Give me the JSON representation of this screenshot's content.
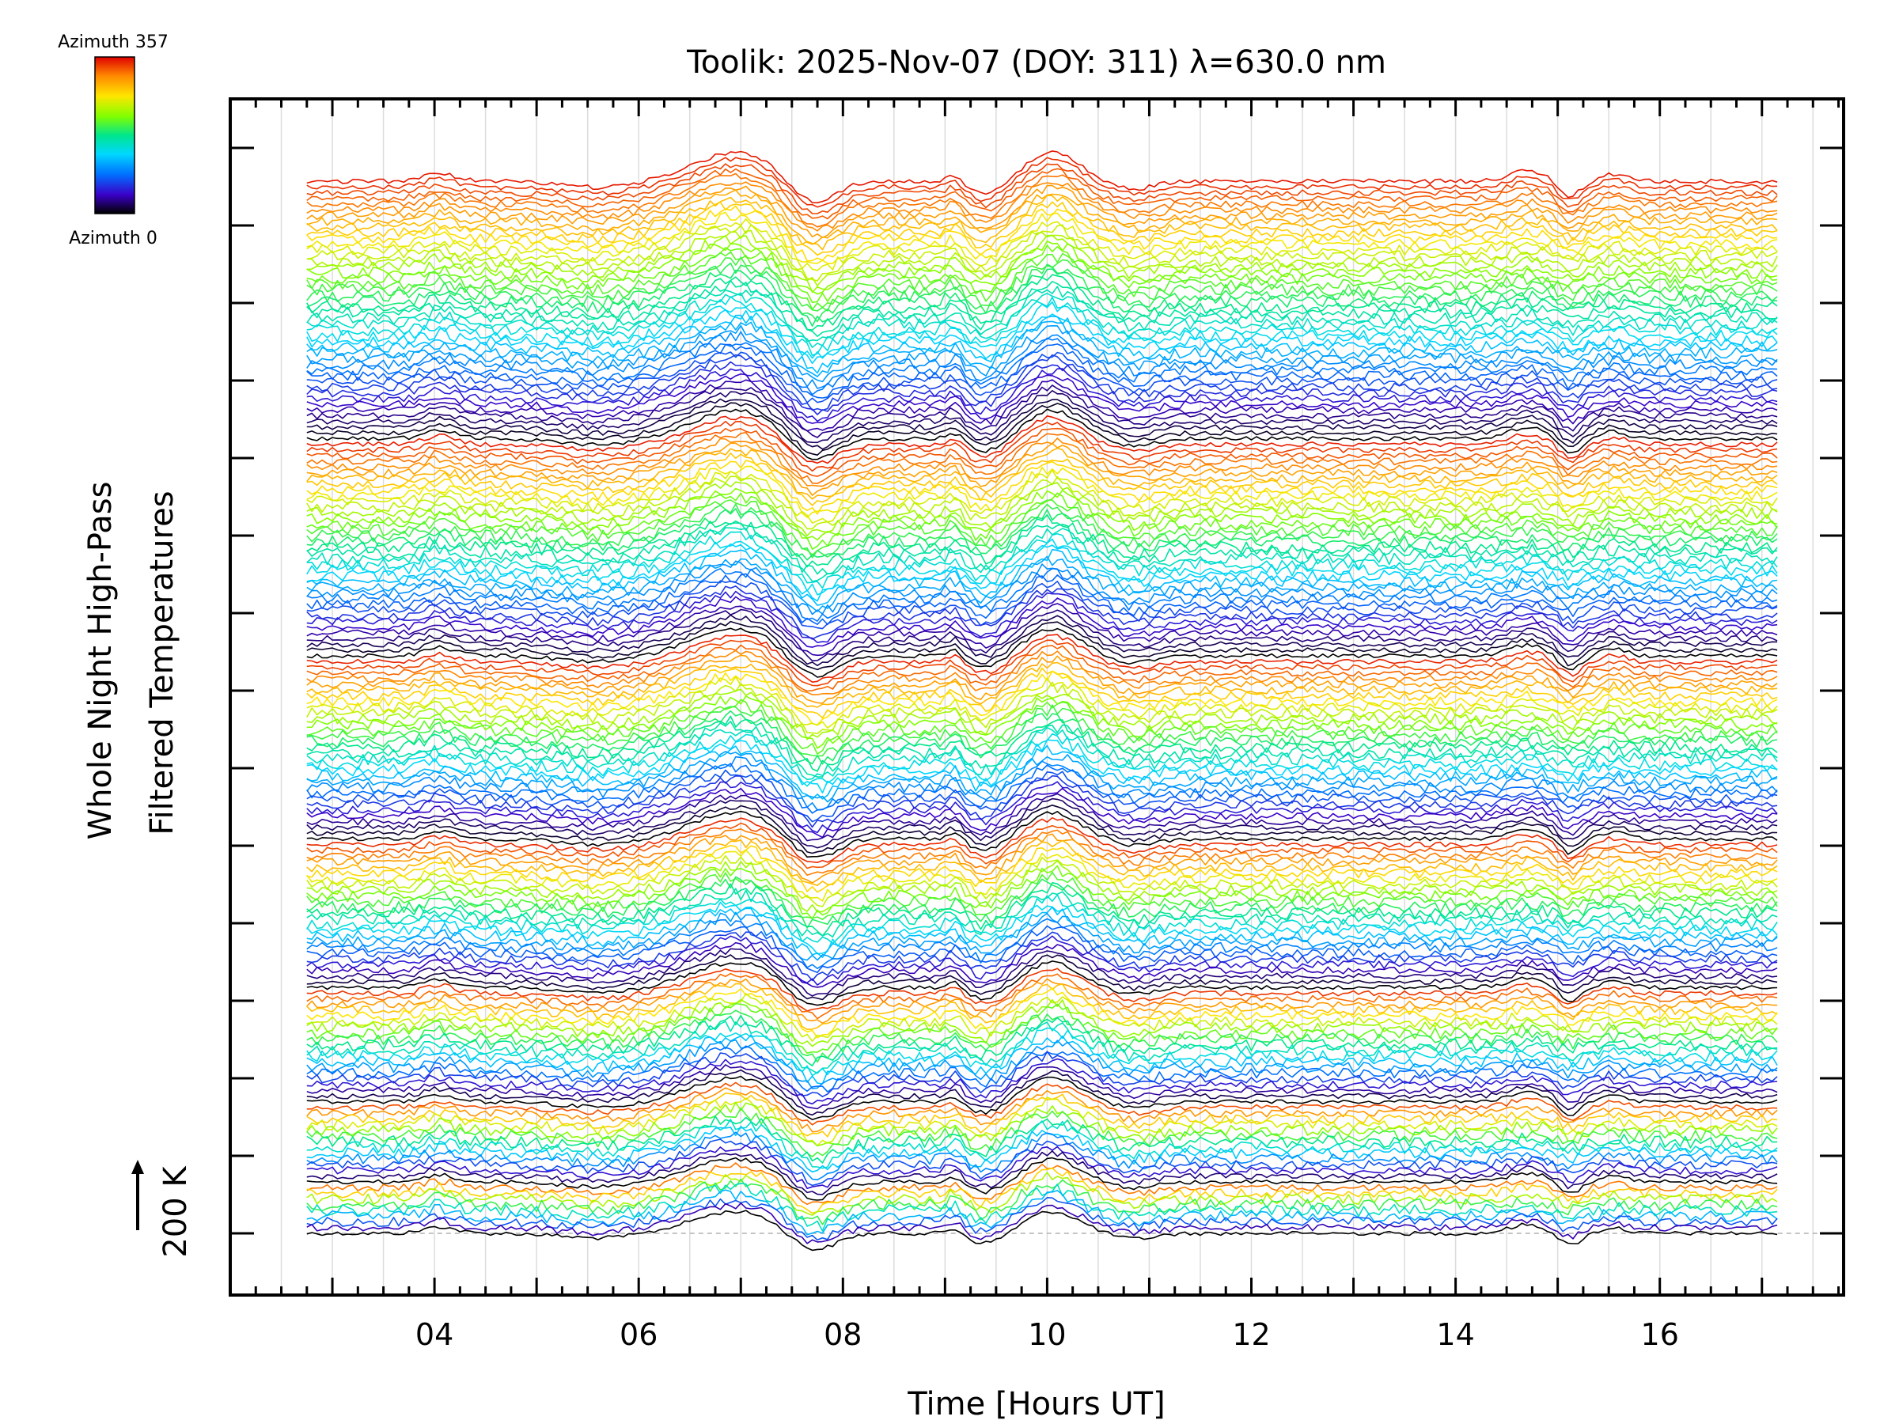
{
  "chart_data": {
    "type": "line",
    "title": "Toolik: 2025-Nov-07 (DOY: 311) λ=630.0 nm",
    "xlabel": "Time [Hours UT]",
    "ylabel_line1": "Whole Night High-Pass",
    "ylabel_line2": "Filtered Temperatures",
    "scale_label": "200 K",
    "xlim": [
      2.0,
      17.8
    ],
    "x_data_range": [
      2.75,
      17.15
    ],
    "x_ticks": [
      "04",
      "06",
      "08",
      "10",
      "12",
      "14",
      "16"
    ],
    "x_tick_values": [
      4,
      6,
      8,
      10,
      12,
      14,
      16
    ],
    "grid_x": true,
    "colorbar": {
      "top_label": "Azimuth 357",
      "bottom_label": "Azimuth 0",
      "colors": [
        "#000000",
        "#3a00c8",
        "#0070ff",
        "#00d8ff",
        "#00e68c",
        "#80ff00",
        "#ffe600",
        "#ff8800",
        "#e00000"
      ],
      "position": "top-left"
    },
    "features": [
      {
        "time": 7.0,
        "shape": "broad positive",
        "amp": 1.0
      },
      {
        "time": 7.5,
        "shape": "sharp drop",
        "amp": -1.0
      },
      {
        "time": 9.1,
        "shape": "narrow spike",
        "amp": 0.4
      },
      {
        "time": 9.4,
        "shape": "dip",
        "amp": -0.45
      },
      {
        "time": 10.05,
        "shape": "peak",
        "amp": 1.0
      },
      {
        "time": 10.8,
        "shape": "dip",
        "amp": -0.25
      },
      {
        "time": 14.7,
        "shape": "peak",
        "amp": 0.45
      },
      {
        "time": 15.1,
        "shape": "dip",
        "amp": -0.55
      },
      {
        "time": 15.45,
        "shape": "step",
        "amp": 0.3
      }
    ],
    "ring_lengths": [
      9,
      14,
      20,
      26,
      32,
      38,
      46
    ]
  }
}
